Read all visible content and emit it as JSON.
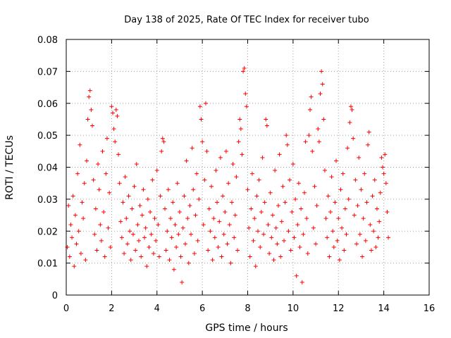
{
  "chart_data": {
    "type": "scatter",
    "title": "Day 138 of 2025, Rate Of TEC Index for receiver tubo",
    "xlabel": "GPS time / hours",
    "ylabel": "ROTI / TECUs",
    "xlim": [
      0,
      16
    ],
    "ylim": [
      0,
      0.08
    ],
    "x_ticks": [
      "0",
      "2",
      "4",
      "6",
      "8",
      "10",
      "12",
      "14",
      "16"
    ],
    "y_ticks": [
      "0",
      "0.01",
      "0.02",
      "0.03",
      "0.04",
      "0.05",
      "0.06",
      "0.07",
      "0.08"
    ],
    "grid": true,
    "marker": "+",
    "color": "#ff0000",
    "x_range_covered": [
      0,
      14.2
    ],
    "series": [
      {
        "values_note": "",
        "points": [
          [
            0.05,
            0.015
          ],
          [
            0.1,
            0.028
          ],
          [
            0.15,
            0.012
          ],
          [
            0.2,
            0.022
          ],
          [
            0.25,
            0.018
          ],
          [
            0.3,
            0.031
          ],
          [
            0.35,
            0.009
          ],
          [
            0.4,
            0.025
          ],
          [
            0.45,
            0.016
          ],
          [
            0.5,
            0.038
          ],
          [
            0.55,
            0.02
          ],
          [
            0.6,
            0.047
          ],
          [
            0.65,
            0.013
          ],
          [
            0.7,
            0.029
          ],
          [
            0.75,
            0.024
          ],
          [
            0.8,
            0.035
          ],
          [
            0.85,
            0.011
          ],
          [
            0.9,
            0.042
          ],
          [
            0.95,
            0.055
          ],
          [
            1.0,
            0.062
          ],
          [
            1.05,
            0.064
          ],
          [
            1.1,
            0.058
          ],
          [
            1.15,
            0.053
          ],
          [
            1.2,
            0.036
          ],
          [
            1.25,
            0.019
          ],
          [
            1.3,
            0.027
          ],
          [
            1.35,
            0.014
          ],
          [
            1.4,
            0.041
          ],
          [
            1.45,
            0.033
          ],
          [
            1.5,
            0.022
          ],
          [
            1.55,
            0.017
          ],
          [
            1.6,
            0.045
          ],
          [
            1.65,
            0.026
          ],
          [
            1.7,
            0.012
          ],
          [
            1.75,
            0.038
          ],
          [
            1.8,
            0.049
          ],
          [
            1.85,
            0.021
          ],
          [
            1.9,
            0.032
          ],
          [
            1.95,
            0.015
          ],
          [
            2.0,
            0.059
          ],
          [
            2.05,
            0.057
          ],
          [
            2.1,
            0.052
          ],
          [
            2.15,
            0.048
          ],
          [
            2.2,
            0.058
          ],
          [
            2.25,
            0.056
          ],
          [
            2.3,
            0.044
          ],
          [
            2.35,
            0.035
          ],
          [
            2.4,
            0.023
          ],
          [
            2.45,
            0.018
          ],
          [
            2.5,
            0.029
          ],
          [
            2.55,
            0.013
          ],
          [
            2.6,
            0.037
          ],
          [
            2.65,
            0.024
          ],
          [
            2.7,
            0.016
          ],
          [
            2.75,
            0.031
          ],
          [
            2.8,
            0.02
          ],
          [
            2.85,
            0.011
          ],
          [
            2.9,
            0.027
          ],
          [
            2.95,
            0.019
          ],
          [
            3.0,
            0.034
          ],
          [
            3.05,
            0.014
          ],
          [
            3.1,
            0.041
          ],
          [
            3.15,
            0.022
          ],
          [
            3.2,
            0.017
          ],
          [
            3.25,
            0.028
          ],
          [
            3.3,
            0.012
          ],
          [
            3.35,
            0.025
          ],
          [
            3.4,
            0.033
          ],
          [
            3.45,
            0.018
          ],
          [
            3.5,
            0.021
          ],
          [
            3.55,
            0.009
          ],
          [
            3.6,
            0.03
          ],
          [
            3.65,
            0.015
          ],
          [
            3.7,
            0.026
          ],
          [
            3.75,
            0.019
          ],
          [
            3.8,
            0.036
          ],
          [
            3.85,
            0.013
          ],
          [
            3.9,
            0.024
          ],
          [
            3.95,
            0.017
          ],
          [
            4.0,
            0.039
          ],
          [
            4.05,
            0.022
          ],
          [
            4.1,
            0.012
          ],
          [
            4.15,
            0.031
          ],
          [
            4.2,
            0.045
          ],
          [
            4.25,
            0.049
          ],
          [
            4.3,
            0.048
          ],
          [
            4.35,
            0.027
          ],
          [
            4.4,
            0.014
          ],
          [
            4.45,
            0.02
          ],
          [
            4.5,
            0.033
          ],
          [
            4.55,
            0.011
          ],
          [
            4.6,
            0.024
          ],
          [
            4.65,
            0.018
          ],
          [
            4.7,
            0.029
          ],
          [
            4.75,
            0.008
          ],
          [
            4.8,
            0.022
          ],
          [
            4.85,
            0.015
          ],
          [
            4.9,
            0.035
          ],
          [
            4.95,
            0.019
          ],
          [
            5.0,
            0.026
          ],
          [
            5.05,
            0.012
          ],
          [
            5.1,
            0.004
          ],
          [
            5.15,
            0.021
          ],
          [
            5.2,
            0.031
          ],
          [
            5.25,
            0.016
          ],
          [
            5.3,
            0.042
          ],
          [
            5.35,
            0.024
          ],
          [
            5.4,
            0.01
          ],
          [
            5.45,
            0.028
          ],
          [
            5.5,
            0.019
          ],
          [
            5.55,
            0.046
          ],
          [
            5.6,
            0.033
          ],
          [
            5.65,
            0.013
          ],
          [
            5.7,
            0.025
          ],
          [
            5.75,
            0.038
          ],
          [
            5.8,
            0.017
          ],
          [
            5.85,
            0.03
          ],
          [
            5.9,
            0.059
          ],
          [
            5.95,
            0.055
          ],
          [
            6.0,
            0.048
          ],
          [
            6.05,
            0.022
          ],
          [
            6.1,
            0.036
          ],
          [
            6.15,
            0.06
          ],
          [
            6.2,
            0.045
          ],
          [
            6.25,
            0.014
          ],
          [
            6.3,
            0.027
          ],
          [
            6.35,
            0.02
          ],
          [
            6.4,
            0.034
          ],
          [
            6.45,
            0.011
          ],
          [
            6.5,
            0.024
          ],
          [
            6.55,
            0.018
          ],
          [
            6.6,
            0.039
          ],
          [
            6.65,
            0.029
          ],
          [
            6.7,
            0.015
          ],
          [
            6.75,
            0.023
          ],
          [
            6.8,
            0.043
          ],
          [
            6.85,
            0.012
          ],
          [
            6.9,
            0.031
          ],
          [
            6.95,
            0.019
          ],
          [
            7.0,
            0.026
          ],
          [
            7.05,
            0.045
          ],
          [
            7.1,
            0.016
          ],
          [
            7.15,
            0.035
          ],
          [
            7.2,
            0.022
          ],
          [
            7.25,
            0.01
          ],
          [
            7.3,
            0.029
          ],
          [
            7.35,
            0.041
          ],
          [
            7.4,
            0.018
          ],
          [
            7.45,
            0.025
          ],
          [
            7.5,
            0.037
          ],
          [
            7.55,
            0.014
          ],
          [
            7.6,
            0.048
          ],
          [
            7.65,
            0.055
          ],
          [
            7.7,
            0.052
          ],
          [
            7.75,
            0.044
          ],
          [
            7.8,
            0.07
          ],
          [
            7.85,
            0.071
          ],
          [
            7.9,
            0.063
          ],
          [
            7.95,
            0.059
          ],
          [
            8.0,
            0.033
          ],
          [
            8.05,
            0.021
          ],
          [
            8.1,
            0.012
          ],
          [
            8.15,
            0.027
          ],
          [
            8.2,
            0.038
          ],
          [
            8.25,
            0.017
          ],
          [
            8.3,
            0.024
          ],
          [
            8.35,
            0.009
          ],
          [
            8.4,
            0.031
          ],
          [
            8.45,
            0.02
          ],
          [
            8.5,
            0.036
          ],
          [
            8.55,
            0.015
          ],
          [
            8.6,
            0.026
          ],
          [
            8.65,
            0.043
          ],
          [
            8.7,
            0.019
          ],
          [
            8.75,
            0.029
          ],
          [
            8.8,
            0.055
          ],
          [
            8.85,
            0.053
          ],
          [
            8.9,
            0.022
          ],
          [
            8.95,
            0.013
          ],
          [
            9.0,
            0.032
          ],
          [
            9.05,
            0.018
          ],
          [
            9.1,
            0.025
          ],
          [
            9.15,
            0.011
          ],
          [
            9.2,
            0.039
          ],
          [
            9.25,
            0.021
          ],
          [
            9.3,
            0.016
          ],
          [
            9.35,
            0.028
          ],
          [
            9.4,
            0.044
          ],
          [
            9.45,
            0.012
          ],
          [
            9.5,
            0.023
          ],
          [
            9.55,
            0.034
          ],
          [
            9.6,
            0.017
          ],
          [
            9.65,
            0.029
          ],
          [
            9.7,
            0.05
          ],
          [
            9.75,
            0.047
          ],
          [
            9.8,
            0.02
          ],
          [
            9.85,
            0.036
          ],
          [
            9.9,
            0.014
          ],
          [
            9.95,
            0.026
          ],
          [
            10.0,
            0.041
          ],
          [
            10.05,
            0.018
          ],
          [
            10.1,
            0.03
          ],
          [
            10.15,
            0.006
          ],
          [
            10.2,
            0.022
          ],
          [
            10.25,
            0.035
          ],
          [
            10.3,
            0.015
          ],
          [
            10.35,
            0.027
          ],
          [
            10.4,
            0.004
          ],
          [
            10.45,
            0.019
          ],
          [
            10.5,
            0.032
          ],
          [
            10.55,
            0.048
          ],
          [
            10.6,
            0.024
          ],
          [
            10.65,
            0.013
          ],
          [
            10.7,
            0.05
          ],
          [
            10.75,
            0.058
          ],
          [
            10.8,
            0.062
          ],
          [
            10.85,
            0.045
          ],
          [
            10.9,
            0.021
          ],
          [
            10.95,
            0.034
          ],
          [
            11.0,
            0.016
          ],
          [
            11.05,
            0.028
          ],
          [
            11.1,
            0.052
          ],
          [
            11.15,
            0.048
          ],
          [
            11.2,
            0.063
          ],
          [
            11.25,
            0.07
          ],
          [
            11.3,
            0.066
          ],
          [
            11.35,
            0.055
          ],
          [
            11.4,
            0.039
          ],
          [
            11.45,
            0.024
          ],
          [
            11.5,
            0.018
          ],
          [
            11.55,
            0.031
          ],
          [
            11.6,
            0.012
          ],
          [
            11.65,
            0.026
          ],
          [
            11.7,
            0.037
          ],
          [
            11.75,
            0.02
          ],
          [
            11.8,
            0.015
          ],
          [
            11.85,
            0.029
          ],
          [
            11.9,
            0.042
          ],
          [
            11.95,
            0.017
          ],
          [
            12.0,
            0.024
          ],
          [
            12.05,
            0.011
          ],
          [
            12.1,
            0.033
          ],
          [
            12.15,
            0.021
          ],
          [
            12.2,
            0.038
          ],
          [
            12.25,
            0.014
          ],
          [
            12.3,
            0.027
          ],
          [
            12.35,
            0.019
          ],
          [
            12.4,
            0.046
          ],
          [
            12.45,
            0.03
          ],
          [
            12.5,
            0.054
          ],
          [
            12.55,
            0.059
          ],
          [
            12.6,
            0.058
          ],
          [
            12.65,
            0.049
          ],
          [
            12.7,
            0.025
          ],
          [
            12.75,
            0.036
          ],
          [
            12.8,
            0.016
          ],
          [
            12.85,
            0.028
          ],
          [
            12.9,
            0.043
          ],
          [
            12.95,
            0.019
          ],
          [
            13.0,
            0.033
          ],
          [
            13.05,
            0.012
          ],
          [
            13.1,
            0.024
          ],
          [
            13.15,
            0.038
          ],
          [
            13.2,
            0.017
          ],
          [
            13.25,
            0.029
          ],
          [
            13.3,
            0.047
          ],
          [
            13.35,
            0.051
          ],
          [
            13.4,
            0.022
          ],
          [
            13.45,
            0.014
          ],
          [
            13.5,
            0.031
          ],
          [
            13.55,
            0.02
          ],
          [
            13.6,
            0.036
          ],
          [
            13.65,
            0.015
          ],
          [
            13.7,
            0.027
          ],
          [
            13.75,
            0.018
          ],
          [
            13.8,
            0.023
          ],
          [
            13.85,
            0.032
          ],
          [
            13.9,
            0.043
          ],
          [
            13.95,
            0.04
          ],
          [
            14.0,
            0.038
          ],
          [
            14.05,
            0.044
          ],
          [
            14.1,
            0.035
          ],
          [
            14.15,
            0.026
          ],
          [
            14.2,
            0.018
          ]
        ]
      }
    ]
  }
}
